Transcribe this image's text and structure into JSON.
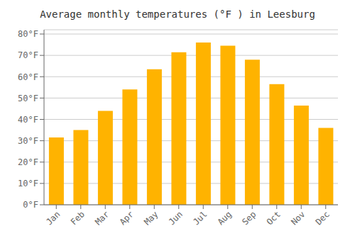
{
  "chart_data": {
    "type": "bar",
    "title": "Average monthly temperatures (°F ) in Leesburg",
    "categories": [
      "Jan",
      "Feb",
      "Mar",
      "Apr",
      "May",
      "Jun",
      "Jul",
      "Aug",
      "Sep",
      "Oct",
      "Nov",
      "Dec"
    ],
    "values": [
      31.5,
      35.0,
      44.0,
      54.0,
      63.5,
      71.5,
      76.0,
      74.5,
      68.0,
      56.5,
      46.5,
      36.0
    ],
    "color": "#FFB300",
    "ylim": [
      0,
      82
    ],
    "yticks": [
      {
        "value": 0,
        "label": "0°F"
      },
      {
        "value": 10,
        "label": "10°F"
      },
      {
        "value": 20,
        "label": "20°F"
      },
      {
        "value": 30,
        "label": "30°F"
      },
      {
        "value": 40,
        "label": "40°F"
      },
      {
        "value": 50,
        "label": "50°F"
      },
      {
        "value": 60,
        "label": "60°F"
      },
      {
        "value": 70,
        "label": "70°F"
      },
      {
        "value": 80,
        "label": "80°F"
      }
    ],
    "grid": true
  }
}
